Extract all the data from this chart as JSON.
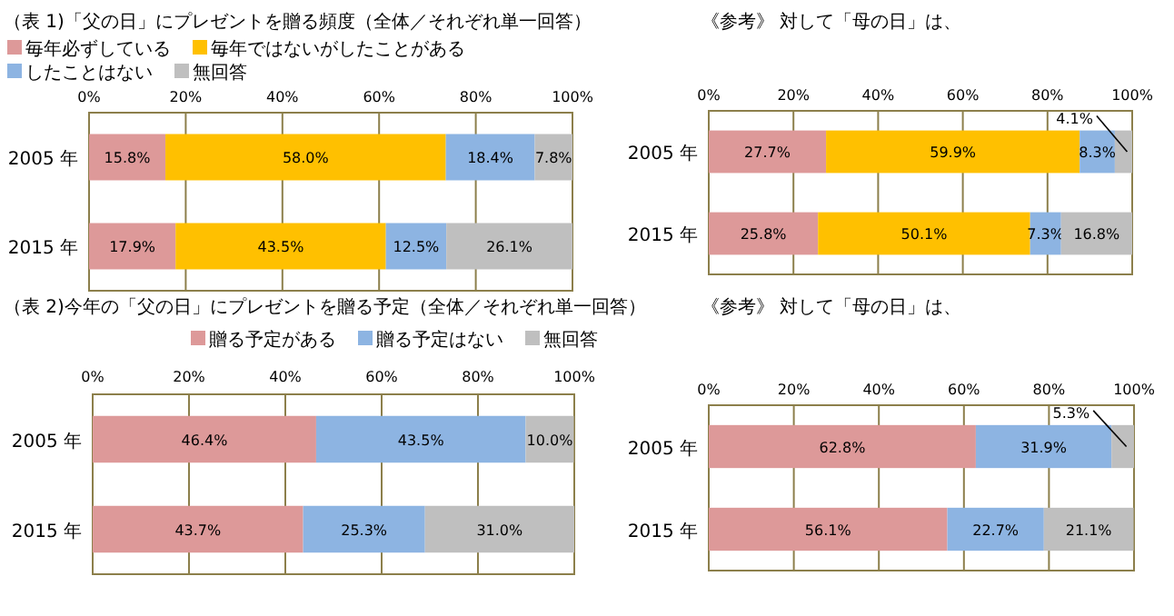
{
  "chart_data": [
    {
      "type": "bar",
      "orientation": "horizontal",
      "stacked": true,
      "title": "（表 1)「父の日」にプレゼントを贈る頻度（全体／それぞれ単一回答）",
      "categories": [
        "2005 年",
        "2015 年"
      ],
      "legend": "top",
      "grid": "x",
      "xlim": [
        0,
        100
      ],
      "xticks": [
        {
          "value": 0,
          "label": "0%"
        },
        {
          "value": 20,
          "label": "20%"
        },
        {
          "value": 40,
          "label": "40%"
        },
        {
          "value": 60,
          "label": "60%"
        },
        {
          "value": 80,
          "label": "80%"
        },
        {
          "value": 100,
          "label": "100%"
        }
      ],
      "series": [
        {
          "name": "毎年必ずしている",
          "color": "#dd9999",
          "values": [
            15.8,
            17.9
          ],
          "value_labels": [
            "15.8%",
            "17.9%"
          ]
        },
        {
          "name": "毎年ではないがしたことがある",
          "color": "#ffc000",
          "values": [
            58.0,
            43.5
          ],
          "value_labels": [
            "58.0%",
            "43.5%"
          ]
        },
        {
          "name": "したことはない",
          "color": "#8db4e2",
          "values": [
            18.4,
            12.5
          ],
          "value_labels": [
            "18.4%",
            "12.5%"
          ]
        },
        {
          "name": "無回答",
          "color": "#bfbfbf",
          "values": [
            7.8,
            26.1
          ],
          "value_labels": [
            "7.8%",
            "26.1%"
          ]
        }
      ]
    },
    {
      "type": "bar",
      "orientation": "horizontal",
      "stacked": true,
      "title": "《参考》 対して「母の日」は、",
      "categories": [
        "2005 年",
        "2015 年"
      ],
      "grid": "x",
      "xlim": [
        0,
        100
      ],
      "xticks": [
        {
          "value": 0,
          "label": "0%"
        },
        {
          "value": 20,
          "label": "20%"
        },
        {
          "value": 40,
          "label": "40%"
        },
        {
          "value": 60,
          "label": "60%"
        },
        {
          "value": 80,
          "label": "80%"
        },
        {
          "value": 100,
          "label": "100%"
        }
      ],
      "series": [
        {
          "color": "#dd9999",
          "values": [
            27.7,
            25.8
          ],
          "value_labels": [
            "27.7%",
            "25.8%"
          ]
        },
        {
          "color": "#ffc000",
          "values": [
            59.9,
            50.1
          ],
          "value_labels": [
            "59.9%",
            "50.1%"
          ]
        },
        {
          "color": "#8db4e2",
          "values": [
            8.3,
            7.3
          ],
          "value_labels": [
            "8.3%",
            "7.3%"
          ]
        },
        {
          "color": "#bfbfbf",
          "values": [
            4.1,
            16.8
          ],
          "value_labels": [
            "4.1%",
            "16.8%"
          ]
        }
      ]
    },
    {
      "type": "bar",
      "orientation": "horizontal",
      "stacked": true,
      "title": "（表 2)今年の「父の日」にプレゼントを贈る予定（全体／それぞれ単一回答）",
      "categories": [
        "2005 年",
        "2015 年"
      ],
      "legend": "top",
      "grid": "x",
      "xlim": [
        0,
        100
      ],
      "xticks": [
        {
          "value": 0,
          "label": "0%"
        },
        {
          "value": 20,
          "label": "20%"
        },
        {
          "value": 40,
          "label": "40%"
        },
        {
          "value": 60,
          "label": "60%"
        },
        {
          "value": 80,
          "label": "80%"
        },
        {
          "value": 100,
          "label": "100%"
        }
      ],
      "series": [
        {
          "name": "贈る予定がある",
          "color": "#dd9999",
          "values": [
            46.4,
            43.7
          ],
          "value_labels": [
            "46.4%",
            "43.7%"
          ]
        },
        {
          "name": "贈る予定はない",
          "color": "#8db4e2",
          "values": [
            43.5,
            25.3
          ],
          "value_labels": [
            "43.5%",
            "25.3%"
          ]
        },
        {
          "name": "無回答",
          "color": "#bfbfbf",
          "values": [
            10.0,
            31.0
          ],
          "value_labels": [
            "10.0%",
            "31.0%"
          ]
        }
      ]
    },
    {
      "type": "bar",
      "orientation": "horizontal",
      "stacked": true,
      "title": "《参考》 対して「母の日」は、",
      "categories": [
        "2005 年",
        "2015 年"
      ],
      "grid": "x",
      "xlim": [
        0,
        100
      ],
      "xticks": [
        {
          "value": 0,
          "label": "0%"
        },
        {
          "value": 20,
          "label": "20%"
        },
        {
          "value": 40,
          "label": "40%"
        },
        {
          "value": 60,
          "label": "60%"
        },
        {
          "value": 80,
          "label": "80%"
        },
        {
          "value": 100,
          "label": "100%"
        }
      ],
      "series": [
        {
          "color": "#dd9999",
          "values": [
            62.8,
            56.1
          ],
          "value_labels": [
            "62.8%",
            "56.1%"
          ]
        },
        {
          "color": "#8db4e2",
          "values": [
            31.9,
            22.7
          ],
          "value_labels": [
            "31.9%",
            "22.7%"
          ]
        },
        {
          "color": "#bfbfbf",
          "values": [
            5.3,
            21.1
          ],
          "value_labels": [
            "5.3%",
            "21.1%"
          ]
        }
      ]
    }
  ]
}
